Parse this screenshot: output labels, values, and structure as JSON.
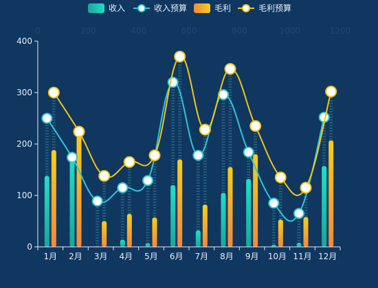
{
  "chart_data": {
    "type": "bar",
    "categories": [
      "1月",
      "2月",
      "3月",
      "4月",
      "5月",
      "6月",
      "7月",
      "8月",
      "9月",
      "10月",
      "11月",
      "12月"
    ],
    "series": [
      {
        "name": "收入",
        "kind": "bar",
        "values": [
          138,
          180,
          0,
          14,
          7,
          120,
          32,
          105,
          132,
          4,
          8,
          157
        ]
      },
      {
        "name": "收入预算",
        "kind": "line",
        "values": [
          250,
          174,
          89,
          115,
          129,
          320,
          178,
          296,
          184,
          85,
          65,
          252
        ]
      },
      {
        "name": "毛利",
        "kind": "bar",
        "values": [
          188,
          216,
          50,
          64,
          57,
          170,
          82,
          155,
          180,
          53,
          58,
          207
        ]
      },
      {
        "name": "毛利预算",
        "kind": "line",
        "values": [
          300,
          224,
          138,
          165,
          178,
          370,
          228,
          346,
          235,
          135,
          115,
          302
        ]
      }
    ],
    "y_axis": {
      "min": 0,
      "max": 400,
      "ticks": [
        0,
        100,
        200,
        300,
        400
      ]
    },
    "top_axis": {
      "min": 0,
      "max": 1200,
      "ticks": [
        0,
        200,
        400,
        600,
        800,
        1000,
        1200
      ]
    },
    "legend_position": "top-center",
    "colors": {
      "background": "#0f3760",
      "income_bar_top": "#1ee0c8",
      "income_bar_bottom": "#1aa69a",
      "income_line": "#2ec7d8",
      "profit_bar_top": "#f8cf17",
      "profit_bar_bottom": "#f5883a",
      "profit_line": "#f5c518",
      "marker_fill": "#ffffff",
      "axis": "#e6eef7",
      "top_axis_text": "#23486f",
      "dash_line": "#2d6a86"
    }
  }
}
